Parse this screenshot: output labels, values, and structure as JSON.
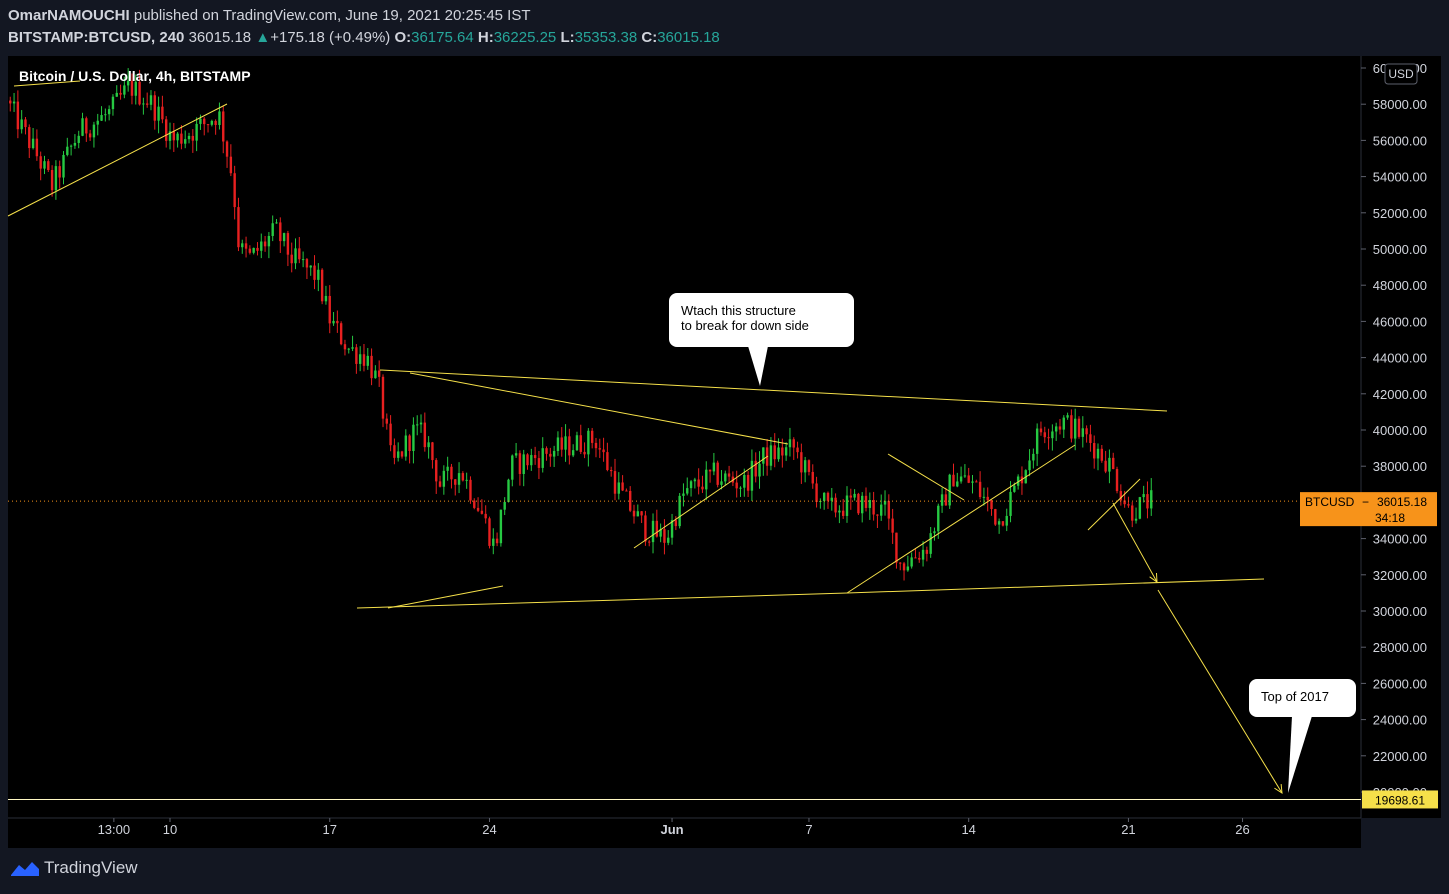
{
  "header": {
    "author": "OmarNAMOUCHI",
    "published_text": " published on TradingView.com, June 19, 2021 20:25:45 IST",
    "symbol": "BITSTAMP:BTCUSD, 240",
    "last": "36015.18",
    "change": "+175.18 (+0.49%)",
    "o_label": "O:",
    "o_value": "36175.64",
    "h_label": "H:",
    "h_value": "36225.25",
    "l_label": "L:",
    "l_value": "35353.38",
    "c_label": "C:",
    "c_value": "36015.18"
  },
  "footer": {
    "brand": "TradingView"
  },
  "colors": {
    "background": "#000000",
    "up": "#26c942",
    "down": "#e82020",
    "drawing": "#f5e04a",
    "price_badge": "#f7931a",
    "text": "#d1d4dc"
  },
  "chart_data": {
    "type": "candlestick",
    "title": "Bitcoin / U.S. Dollar, 4h, BITSTAMP",
    "currency_label": "USD",
    "ylim": [
      18000,
      61000
    ],
    "y_ticks": [
      "60000.00",
      "58000.00",
      "56000.00",
      "54000.00",
      "52000.00",
      "50000.00",
      "48000.00",
      "46000.00",
      "44000.00",
      "42000.00",
      "40000.00",
      "38000.00",
      "36000.00",
      "34000.00",
      "32000.00",
      "30000.00",
      "28000.00",
      "26000.00",
      "24000.00",
      "22000.00",
      "20000.00"
    ],
    "x_ticks": [
      {
        "label": "13:00",
        "day": 7.54
      },
      {
        "label": "10",
        "day": 10
      },
      {
        "label": "17",
        "day": 17
      },
      {
        "label": "24",
        "day": 24
      },
      {
        "label": "Jun",
        "day": 32
      },
      {
        "label": "7",
        "day": 38
      },
      {
        "label": "14",
        "day": 45
      },
      {
        "label": "21",
        "day": 52
      },
      {
        "label": "26",
        "day": 57
      }
    ],
    "current_price": {
      "label": "BTCUSD",
      "value": 36015.18,
      "countdown": "34:18"
    },
    "level_line": {
      "value": 19698.61,
      "label": "19698.61"
    },
    "path_points": [
      {
        "day": 3.0,
        "price": 58200
      },
      {
        "day": 4.2,
        "price": 55500
      },
      {
        "day": 5.0,
        "price": 53500
      },
      {
        "day": 6.2,
        "price": 56500
      },
      {
        "day": 7.5,
        "price": 57500
      },
      {
        "day": 8.4,
        "price": 59000
      },
      {
        "day": 9.4,
        "price": 58000
      },
      {
        "day": 10.3,
        "price": 56000
      },
      {
        "day": 11.3,
        "price": 56600
      },
      {
        "day": 12.3,
        "price": 57500
      },
      {
        "day": 12.9,
        "price": 54000
      },
      {
        "day": 13.2,
        "price": 50000
      },
      {
        "day": 13.7,
        "price": 49500
      },
      {
        "day": 14.8,
        "price": 51000
      },
      {
        "day": 15.5,
        "price": 49500
      },
      {
        "day": 16.6,
        "price": 48500
      },
      {
        "day": 17.2,
        "price": 46000
      },
      {
        "day": 18.0,
        "price": 44500
      },
      {
        "day": 18.8,
        "price": 44000
      },
      {
        "day": 19.3,
        "price": 42500
      },
      {
        "day": 19.9,
        "price": 38000
      },
      {
        "day": 20.9,
        "price": 40000
      },
      {
        "day": 21.4,
        "price": 39500
      },
      {
        "day": 22.0,
        "price": 37000
      },
      {
        "day": 22.9,
        "price": 37800
      },
      {
        "day": 23.8,
        "price": 35500
      },
      {
        "day": 24.4,
        "price": 33500
      },
      {
        "day": 25.1,
        "price": 38000
      },
      {
        "day": 26.2,
        "price": 38500
      },
      {
        "day": 27.3,
        "price": 39000
      },
      {
        "day": 28.8,
        "price": 39500
      },
      {
        "day": 29.9,
        "price": 36500
      },
      {
        "day": 31.0,
        "price": 34500
      },
      {
        "day": 31.9,
        "price": 34000
      },
      {
        "day": 32.7,
        "price": 36500
      },
      {
        "day": 34.0,
        "price": 37500
      },
      {
        "day": 35.3,
        "price": 37000
      },
      {
        "day": 36.2,
        "price": 38500
      },
      {
        "day": 37.5,
        "price": 39000
      },
      {
        "day": 38.3,
        "price": 37000
      },
      {
        "day": 39.0,
        "price": 35600
      },
      {
        "day": 40.4,
        "price": 36000
      },
      {
        "day": 41.5,
        "price": 35500
      },
      {
        "day": 42.2,
        "price": 32500
      },
      {
        "day": 43.3,
        "price": 33500
      },
      {
        "day": 44.5,
        "price": 37500
      },
      {
        "day": 45.4,
        "price": 37000
      },
      {
        "day": 46.5,
        "price": 35000
      },
      {
        "day": 47.3,
        "price": 37000
      },
      {
        "day": 48.3,
        "price": 40000
      },
      {
        "day": 49.3,
        "price": 40500
      },
      {
        "day": 50.4,
        "price": 39500
      },
      {
        "day": 51.4,
        "price": 38000
      },
      {
        "day": 52.2,
        "price": 35500
      },
      {
        "day": 53.0,
        "price": 36015
      }
    ],
    "annotations": [
      {
        "text_lines": [
          "Wtach this structure",
          "to break for down side"
        ]
      },
      {
        "text_lines": [
          "Top of 2017"
        ]
      }
    ]
  }
}
